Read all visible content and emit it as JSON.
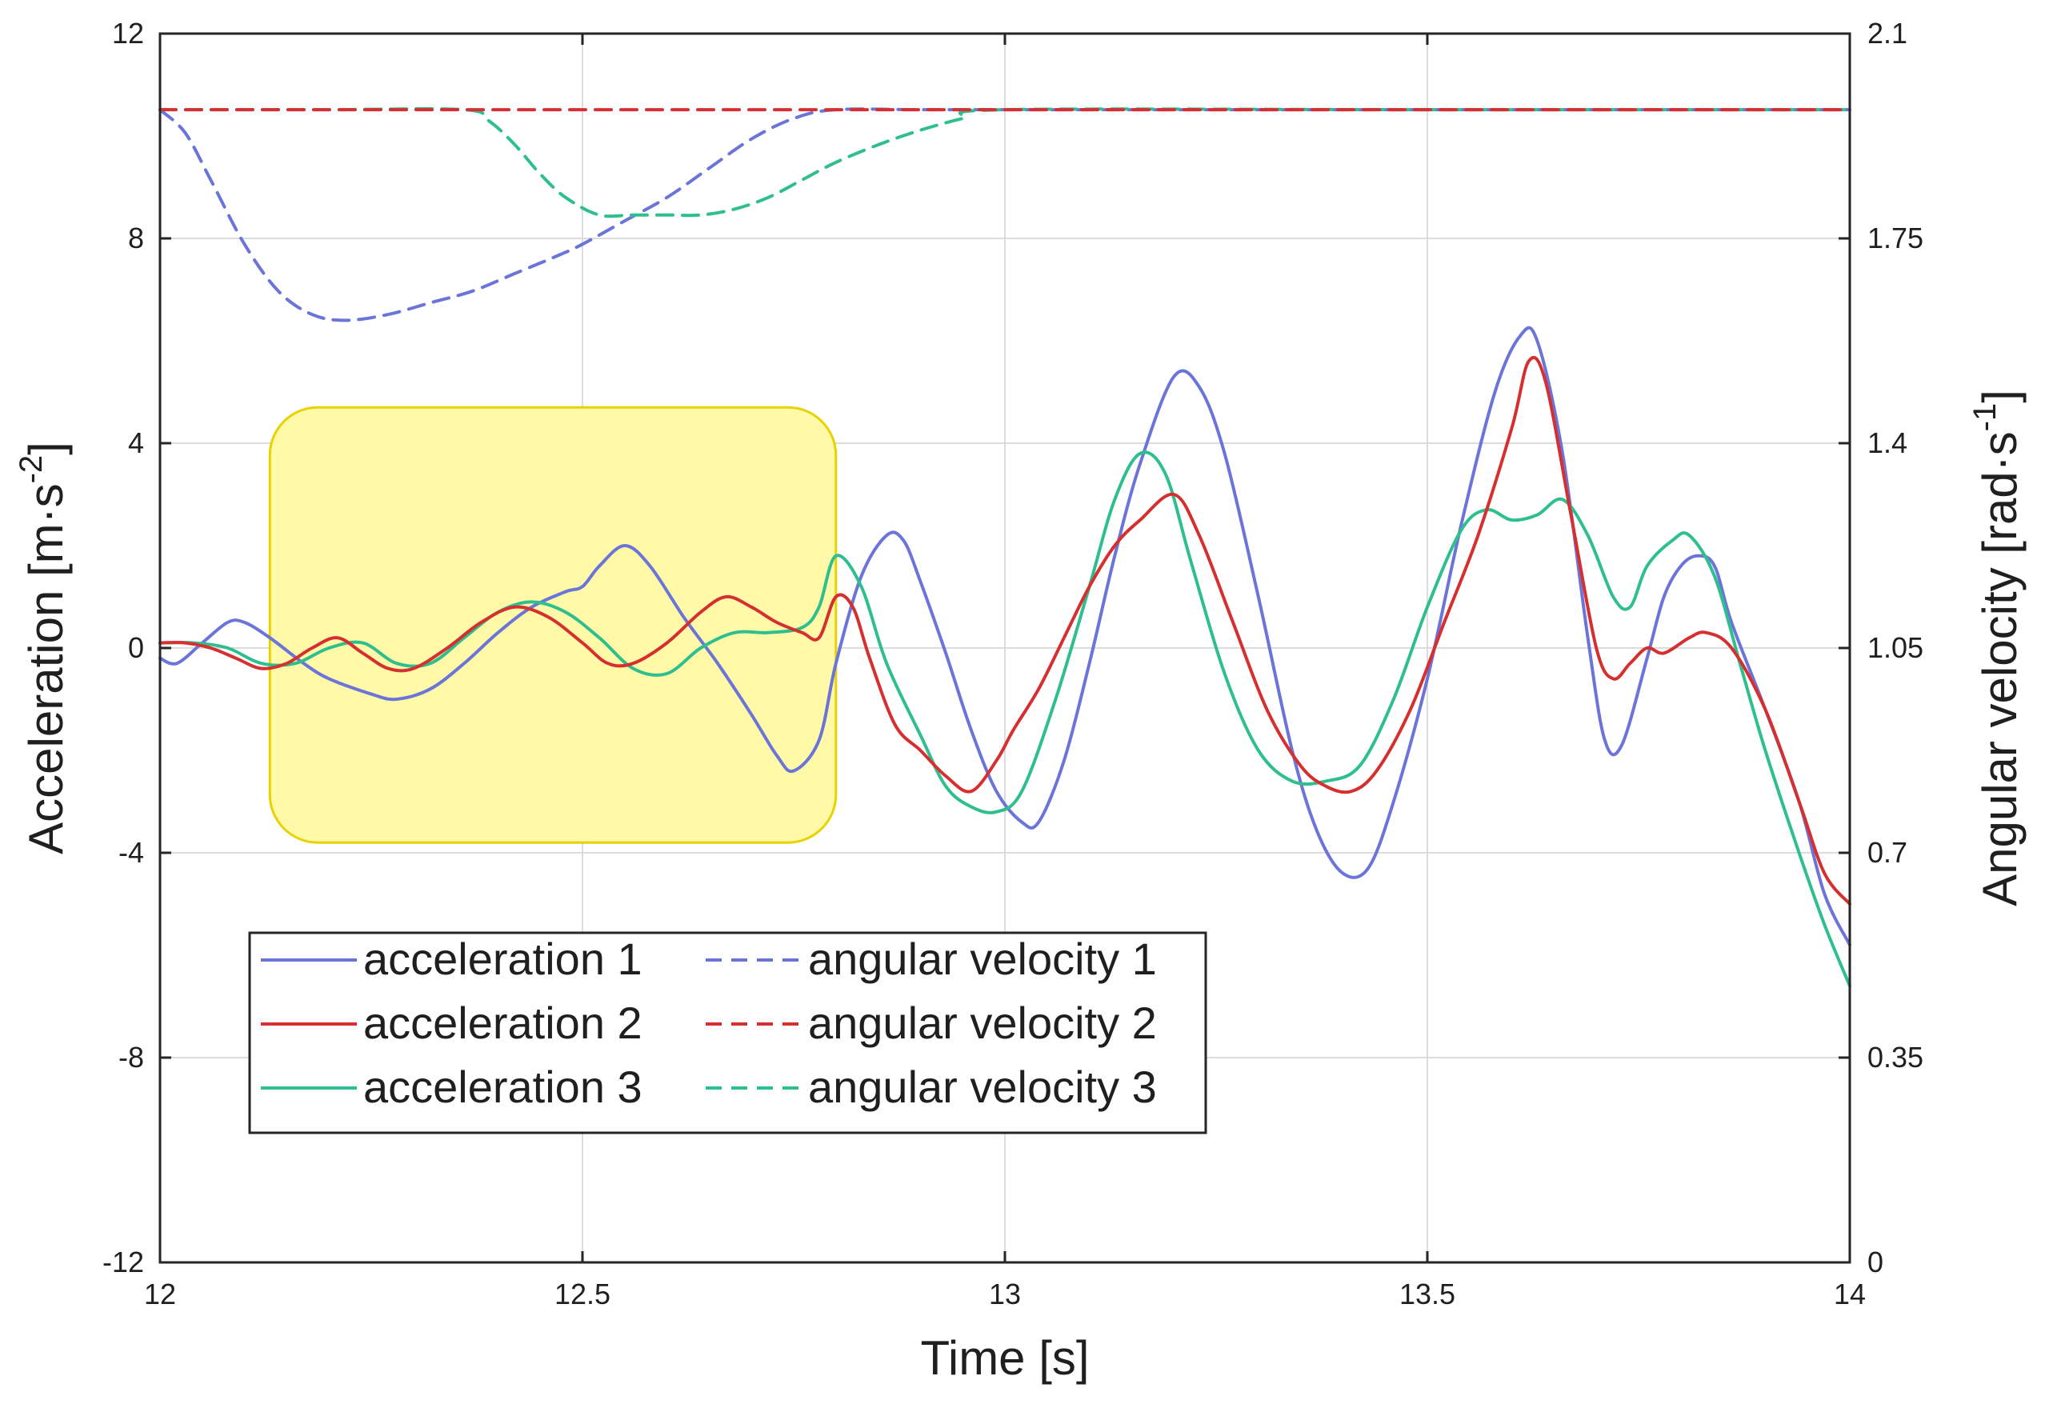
{
  "chart_data": {
    "type": "line",
    "x_label": "Time [s]",
    "y_left_label": "Acceleration [m·s",
    "y_left_label_sup": "-2",
    "y_left_label_end": "]",
    "y_right_label": "Angular velocity [rad·s",
    "y_right_label_sup": "-1",
    "y_right_label_end": "]",
    "xlim": [
      12,
      14
    ],
    "ylim_left": [
      -12,
      12
    ],
    "ylim_right": [
      0,
      2.1
    ],
    "x_ticks": [
      12,
      12.5,
      13,
      13.5,
      14
    ],
    "x_tick_labels": [
      "12",
      "12.5",
      "13",
      "13.5",
      "14"
    ],
    "y_left_ticks": [
      -12,
      -8,
      -4,
      0,
      4,
      8,
      12
    ],
    "y_left_tick_labels": [
      "-12",
      "-8",
      "-4",
      "0",
      "4",
      "8",
      "12"
    ],
    "y_right_ticks": [
      0,
      0.35,
      0.7,
      1.05,
      1.4,
      1.75,
      2.1
    ],
    "y_right_tick_labels": [
      "0",
      "0.35",
      "0.7",
      "1.05",
      "1.4",
      "1.75",
      "2.1"
    ],
    "grid": true,
    "legend_position": "lower-left",
    "highlight_region": {
      "x": [
        12.13,
        12.8
      ],
      "y": [
        -3.8,
        4.7
      ],
      "color": "#fff9a8"
    },
    "series": [
      {
        "name": "acceleration 1",
        "axis": "left",
        "style": "solid",
        "color": "#6b74d9",
        "x": [
          12,
          12.02,
          12.05,
          12.08,
          12.1,
          12.13,
          12.17,
          12.2,
          12.25,
          12.28,
          12.32,
          12.36,
          12.4,
          12.44,
          12.48,
          12.5,
          12.52,
          12.55,
          12.58,
          12.62,
          12.66,
          12.7,
          12.73,
          12.75,
          12.78,
          12.8,
          12.83,
          12.86,
          12.88,
          12.9,
          12.93,
          12.96,
          12.99,
          13.02,
          13.04,
          13.07,
          13.1,
          13.13,
          13.16,
          13.2,
          13.23,
          13.26,
          13.3,
          13.34,
          13.37,
          13.4,
          13.43,
          13.46,
          13.5,
          13.54,
          13.58,
          13.61,
          13.63,
          13.66,
          13.69,
          13.71,
          13.73,
          13.76,
          13.78,
          13.8,
          13.82,
          13.84,
          13.86,
          13.9,
          13.94,
          13.97,
          14
        ],
        "values": [
          -0.2,
          -0.3,
          0.1,
          0.5,
          0.5,
          0.2,
          -0.3,
          -0.6,
          -0.9,
          -1.0,
          -0.8,
          -0.3,
          0.3,
          0.8,
          1.1,
          1.2,
          1.6,
          2.0,
          1.6,
          0.6,
          -0.3,
          -1.3,
          -2.1,
          -2.4,
          -1.8,
          -0.3,
          1.4,
          2.2,
          2.1,
          1.3,
          -0.1,
          -1.6,
          -2.8,
          -3.4,
          -3.4,
          -2.2,
          -0.3,
          1.8,
          3.6,
          5.3,
          5.1,
          3.8,
          1.0,
          -2.0,
          -3.6,
          -4.4,
          -4.3,
          -3.0,
          -0.6,
          2.4,
          5.0,
          6.1,
          6.0,
          3.8,
          0.2,
          -1.8,
          -1.9,
          -0.2,
          1.0,
          1.6,
          1.8,
          1.6,
          0.5,
          -1.2,
          -3.0,
          -4.8,
          -5.8
        ]
      },
      {
        "name": "acceleration 2",
        "axis": "left",
        "style": "solid",
        "color": "#d62f2f",
        "x": [
          12,
          12.03,
          12.06,
          12.09,
          12.12,
          12.15,
          12.18,
          12.21,
          12.24,
          12.27,
          12.3,
          12.34,
          12.38,
          12.42,
          12.46,
          12.5,
          12.53,
          12.56,
          12.6,
          12.64,
          12.67,
          12.7,
          12.73,
          12.76,
          12.78,
          12.8,
          12.82,
          12.84,
          12.87,
          12.9,
          12.93,
          12.96,
          12.99,
          13.01,
          13.04,
          13.07,
          13.1,
          13.13,
          13.16,
          13.2,
          13.23,
          13.27,
          13.31,
          13.35,
          13.38,
          13.41,
          13.44,
          13.48,
          13.52,
          13.56,
          13.6,
          13.62,
          13.64,
          13.67,
          13.7,
          13.72,
          13.74,
          13.76,
          13.78,
          13.81,
          13.83,
          13.86,
          13.9,
          13.94,
          13.97,
          14
        ],
        "values": [
          0.1,
          0.1,
          0.0,
          -0.2,
          -0.4,
          -0.3,
          0.0,
          0.2,
          -0.1,
          -0.4,
          -0.4,
          0.0,
          0.5,
          0.8,
          0.6,
          0.1,
          -0.3,
          -0.3,
          0.1,
          0.7,
          1.0,
          0.8,
          0.5,
          0.3,
          0.2,
          1.0,
          0.8,
          -0.2,
          -1.5,
          -2.0,
          -2.5,
          -2.8,
          -2.2,
          -1.6,
          -0.8,
          0.2,
          1.2,
          2.0,
          2.5,
          3.0,
          2.2,
          0.5,
          -1.2,
          -2.3,
          -2.7,
          -2.8,
          -2.4,
          -1.2,
          0.5,
          2.2,
          4.3,
          5.6,
          5.2,
          2.6,
          0.0,
          -0.6,
          -0.3,
          0.0,
          -0.1,
          0.2,
          0.3,
          0.0,
          -1.2,
          -3.0,
          -4.4,
          -5.0
        ]
      },
      {
        "name": "acceleration 3",
        "axis": "left",
        "style": "solid",
        "color": "#2fbf8f",
        "x": [
          12,
          12.04,
          12.08,
          12.12,
          12.16,
          12.2,
          12.24,
          12.28,
          12.32,
          12.36,
          12.4,
          12.44,
          12.48,
          12.52,
          12.56,
          12.6,
          12.64,
          12.68,
          12.72,
          12.76,
          12.78,
          12.8,
          12.83,
          12.86,
          12.9,
          12.93,
          12.96,
          12.99,
          13.02,
          13.06,
          13.1,
          13.13,
          13.16,
          13.19,
          13.22,
          13.26,
          13.3,
          13.34,
          13.38,
          13.42,
          13.46,
          13.5,
          13.54,
          13.57,
          13.6,
          13.63,
          13.66,
          13.69,
          13.72,
          13.74,
          13.76,
          13.79,
          13.81,
          13.84,
          13.87,
          13.9,
          13.94,
          13.97,
          14
        ],
        "values": [
          0.1,
          0.1,
          0.0,
          -0.3,
          -0.3,
          0.0,
          0.1,
          -0.3,
          -0.3,
          0.2,
          0.7,
          0.9,
          0.7,
          0.2,
          -0.4,
          -0.5,
          0.0,
          0.3,
          0.3,
          0.4,
          0.8,
          1.8,
          1.2,
          -0.3,
          -1.7,
          -2.7,
          -3.1,
          -3.2,
          -2.8,
          -1.0,
          1.2,
          2.9,
          3.8,
          3.4,
          1.7,
          -0.5,
          -2.0,
          -2.6,
          -2.6,
          -2.3,
          -1.0,
          0.8,
          2.3,
          2.7,
          2.5,
          2.6,
          2.9,
          2.2,
          1.0,
          0.8,
          1.6,
          2.1,
          2.2,
          1.4,
          -0.3,
          -2.0,
          -4.0,
          -5.4,
          -6.6
        ]
      },
      {
        "name": "angular velocity 1",
        "axis": "right",
        "style": "dashed",
        "color": "#6b74d9",
        "x": [
          12,
          12.03,
          12.06,
          12.1,
          12.14,
          12.18,
          12.22,
          12.27,
          12.32,
          12.37,
          12.42,
          12.47,
          12.5,
          12.55,
          12.6,
          12.65,
          12.7,
          12.75,
          12.8,
          12.9,
          13,
          13.5,
          14
        ],
        "values": [
          1.97,
          1.93,
          1.85,
          1.74,
          1.66,
          1.62,
          1.61,
          1.62,
          1.64,
          1.66,
          1.69,
          1.72,
          1.74,
          1.78,
          1.82,
          1.87,
          1.92,
          1.955,
          1.97,
          1.97,
          1.97,
          1.97,
          1.97
        ]
      },
      {
        "name": "angular velocity 2",
        "axis": "right",
        "style": "dashed",
        "color": "#d62f2f",
        "x": [
          12,
          12.5,
          13,
          13.5,
          14
        ],
        "values": [
          1.97,
          1.97,
          1.97,
          1.97,
          1.97
        ]
      },
      {
        "name": "angular velocity 3",
        "axis": "right",
        "style": "dashed",
        "color": "#2fbf8f",
        "x": [
          12,
          12.2,
          12.36,
          12.39,
          12.42,
          12.45,
          12.48,
          12.52,
          12.56,
          12.6,
          12.64,
          12.68,
          12.72,
          12.76,
          12.8,
          12.85,
          12.9,
          12.95,
          13,
          13.5,
          14
        ],
        "values": [
          1.97,
          1.97,
          1.97,
          1.95,
          1.91,
          1.86,
          1.82,
          1.79,
          1.79,
          1.79,
          1.79,
          1.8,
          1.82,
          1.85,
          1.88,
          1.91,
          1.935,
          1.955,
          1.97,
          1.97,
          1.97
        ]
      }
    ]
  }
}
